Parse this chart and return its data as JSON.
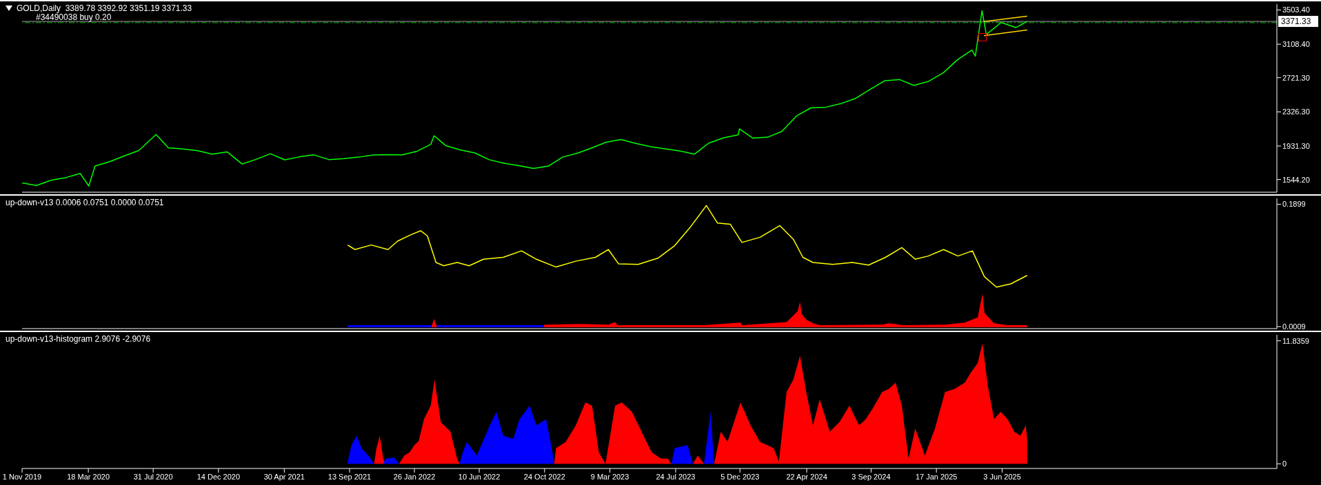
{
  "chart_data": [
    {
      "type": "line",
      "title": "GOLD,Daily  3389.78 3392.92 3351.19 3371.33",
      "xlim": [
        "2019-11-01",
        "2026-12-27"
      ],
      "ylim": [
        1398,
        3571
      ],
      "yticks": [
        {
          "value": 1544.2,
          "label": "1544.20"
        },
        {
          "value": 1931.3,
          "label": "1931.30"
        },
        {
          "value": 2326.3,
          "label": "2326.30"
        },
        {
          "value": 2721.3,
          "label": "2721.30"
        },
        {
          "value": 3108.4,
          "label": "3108.40"
        },
        {
          "value": 3503.4,
          "label": "3503.40"
        }
      ],
      "tick_labels": "y",
      "ref_lines": [
        {
          "axis": "y",
          "value": 3371.33,
          "label": "3371.33",
          "color": "#a0a0a8",
          "line_style": "solid"
        },
        {
          "axis": "y",
          "value": 3357,
          "label": "#34490038 buy 0.20",
          "color": "#00c000",
          "line_style": "dashed"
        }
      ],
      "series": [
        {
          "color": "#00ff00",
          "x": [
            "2019-11-01",
            "2019-12-01",
            "2020-01-01",
            "2020-02-01",
            "2020-03-01",
            "2020-03-19",
            "2020-04-01",
            "2020-05-01",
            "2020-06-01",
            "2020-07-01",
            "2020-08-06",
            "2020-09-01",
            "2020-10-01",
            "2020-11-01",
            "2020-12-01",
            "2021-01-01",
            "2021-02-01",
            "2021-03-01",
            "2021-04-01",
            "2021-05-01",
            "2021-06-01",
            "2021-07-01",
            "2021-08-01",
            "2021-09-01",
            "2021-10-01",
            "2021-11-01",
            "2021-12-01",
            "2022-01-01",
            "2022-02-01",
            "2022-03-01",
            "2022-03-08",
            "2022-04-01",
            "2022-05-01",
            "2022-06-01",
            "2022-07-01",
            "2022-08-01",
            "2022-09-01",
            "2022-10-01",
            "2022-11-01",
            "2022-12-01",
            "2023-01-01",
            "2023-02-01",
            "2023-03-01",
            "2023-04-01",
            "2023-05-01",
            "2023-06-01",
            "2023-07-01",
            "2023-08-01",
            "2023-09-01",
            "2023-10-01",
            "2023-11-01",
            "2023-12-01",
            "2023-12-04",
            "2024-01-01",
            "2024-02-01",
            "2024-03-01",
            "2024-04-01",
            "2024-05-01",
            "2024-06-01",
            "2024-07-01",
            "2024-08-01",
            "2024-09-01",
            "2024-10-01",
            "2024-11-01",
            "2024-12-01",
            "2025-01-01",
            "2025-02-01",
            "2025-03-01",
            "2025-04-01",
            "2025-04-08",
            "2025-04-22",
            "2025-05-01",
            "2025-06-01",
            "2025-07-01",
            "2025-07-25"
          ],
          "values": [
            1505,
            1476,
            1537,
            1568,
            1615,
            1470,
            1700,
            1750,
            1818,
            1880,
            2065,
            1910,
            1898,
            1877,
            1837,
            1864,
            1725,
            1775,
            1843,
            1772,
            1807,
            1829,
            1775,
            1787,
            1803,
            1828,
            1832,
            1830,
            1872,
            1950,
            2050,
            1938,
            1888,
            1852,
            1773,
            1732,
            1705,
            1672,
            1700,
            1805,
            1850,
            1914,
            1975,
            2007,
            1963,
            1925,
            1900,
            1875,
            1837,
            1965,
            2027,
            2060,
            2130,
            2022,
            2034,
            2100,
            2280,
            2373,
            2380,
            2420,
            2480,
            2587,
            2685,
            2700,
            2632,
            2680,
            2780,
            2925,
            3040,
            2970,
            3495,
            3220,
            3360,
            3300,
            3371
          ]
        },
        {
          "color": "#ffd700",
          "x": [
            "2025-04-26",
            "2025-07-25"
          ],
          "values": [
            3370,
            3432
          ]
        },
        {
          "color": "#ffd700",
          "x": [
            "2025-04-26",
            "2025-07-25"
          ],
          "values": [
            3207,
            3273
          ]
        }
      ]
    },
    {
      "type": "line",
      "title": "up-down-v13 0.0006 0.0751 0.0000 0.0751",
      "xlim": [
        "2019-11-01",
        "2026-12-27"
      ],
      "ylim": [
        -0.0022,
        0.199
      ],
      "yticks": [
        0.0009,
        0.1899
      ],
      "tick_labels": "y",
      "series": [
        {
          "color": "#ffff00",
          "x": [
            "2021-09-09",
            "2021-09-24",
            "2021-10-28",
            "2021-12-02",
            "2021-12-22",
            "2022-01-19",
            "2022-02-08",
            "2022-02-22",
            "2022-03-12",
            "2022-03-28",
            "2022-04-25",
            "2022-05-20",
            "2022-06-19",
            "2022-07-30",
            "2022-09-06",
            "2022-10-07",
            "2022-11-17",
            "2022-12-28",
            "2023-02-07",
            "2023-03-06",
            "2023-03-27",
            "2023-05-07",
            "2023-06-18",
            "2023-07-22",
            "2023-08-25",
            "2023-09-26",
            "2023-10-19",
            "2023-11-15",
            "2023-12-09",
            "2024-01-16",
            "2024-02-26",
            "2024-03-25",
            "2024-04-14",
            "2024-05-05",
            "2024-06-15",
            "2024-07-26",
            "2024-08-29",
            "2024-10-03",
            "2024-11-06",
            "2024-12-04",
            "2024-12-31",
            "2025-02-01",
            "2025-03-03",
            "2025-04-02",
            "2025-04-27",
            "2025-05-22",
            "2025-06-21",
            "2025-07-25"
          ],
          "values": [
            0.127,
            0.12,
            0.127,
            0.12,
            0.133,
            0.143,
            0.149,
            0.141,
            0.1,
            0.095,
            0.1,
            0.095,
            0.105,
            0.108,
            0.118,
            0.105,
            0.093,
            0.102,
            0.108,
            0.12,
            0.098,
            0.097,
            0.107,
            0.126,
            0.156,
            0.188,
            0.161,
            0.159,
            0.131,
            0.139,
            0.157,
            0.136,
            0.108,
            0.1,
            0.097,
            0.1,
            0.096,
            0.108,
            0.123,
            0.105,
            0.11,
            0.12,
            0.11,
            0.118,
            0.078,
            0.062,
            0.067,
            0.08
          ]
        },
        {
          "type": "area",
          "color": "#ff0000",
          "x": [
            "2022-03-01",
            "2022-03-04",
            "2022-03-08",
            "2022-03-12",
            "2022-03-16",
            "2022-06-01",
            "2022-10-20",
            "2022-10-24",
            "2023-01-10",
            "2023-03-06",
            "2023-03-20",
            "2023-03-24",
            "2023-09-21",
            "2023-12-06",
            "2023-12-10",
            "2024-03-11",
            "2024-03-25",
            "2024-04-03",
            "2024-04-08",
            "2024-04-12",
            "2024-04-21",
            "2024-05-05",
            "2024-05-19",
            "2024-09-26",
            "2024-10-10",
            "2024-10-24",
            "2024-11-06",
            "2025-02-04",
            "2025-03-17",
            "2025-04-02",
            "2025-04-13",
            "2025-04-23",
            "2025-04-27",
            "2025-05-17",
            "2025-06-14",
            "2025-07-25"
          ],
          "values": [
            0,
            0.004,
            0.013,
            0.004,
            0,
            null,
            0,
            0.004,
            0.005,
            0.004,
            0.008,
            0.003,
            0.003,
            0.007,
            0.003,
            0.008,
            0.018,
            0.025,
            0.039,
            0.02,
            0.012,
            0.006,
            0.003,
            0.004,
            0.006,
            0.005,
            0.003,
            0.004,
            0.007,
            0.012,
            0.015,
            0.052,
            0.022,
            0.006,
            0.003,
            0.003
          ]
        },
        {
          "type": "area",
          "color": "#0000ff",
          "x": [
            "2021-09-09",
            "2022-03-01",
            "2022-03-04",
            "2022-03-08",
            "2022-03-12",
            "2022-03-16",
            "2022-10-20",
            "2022-10-24"
          ],
          "values": [
            0.003,
            0.003,
            0,
            null,
            0,
            0.003,
            0.003,
            0
          ]
        }
      ]
    },
    {
      "type": "area",
      "title": "up-down-v13-histogram 2.9076 -2.9076",
      "xlim": [
        "2019-11-01",
        "2026-12-27"
      ],
      "xticks": [
        {
          "value": "2019-11-01",
          "label": "1 Nov 2019"
        },
        {
          "value": "2020-03-18",
          "label": "18 Mar 2020"
        },
        {
          "value": "2020-07-31",
          "label": "31 Jul 2020"
        },
        {
          "value": "2020-12-14",
          "label": "14 Dec 2020"
        },
        {
          "value": "2021-04-30",
          "label": "30 Apr 2021"
        },
        {
          "value": "2021-09-13",
          "label": "13 Sep 2021"
        },
        {
          "value": "2022-01-26",
          "label": "26 Jan 2022"
        },
        {
          "value": "2022-06-10",
          "label": "10 Jun 2022"
        },
        {
          "value": "2022-10-24",
          "label": "24 Oct 2022"
        },
        {
          "value": "2023-03-09",
          "label": "9 Mar 2023"
        },
        {
          "value": "2023-07-24",
          "label": "24 Jul 2023"
        },
        {
          "value": "2023-12-05",
          "label": "5 Dec 2023"
        },
        {
          "value": "2024-04-22",
          "label": "22 Apr 2024"
        },
        {
          "value": "2024-09-03",
          "label": "3 Sep 2024"
        },
        {
          "value": "2025-01-17",
          "label": "17 Jan 2025"
        },
        {
          "value": "2025-06-03",
          "label": "3 Jun 2025"
        }
      ],
      "ylim": [
        -0.45,
        12.41
      ],
      "yticks": [
        0,
        11.8359
      ],
      "series": [
        {
          "color": "#ff0000",
          "x": [
            "2021-11-03",
            "2021-11-08",
            "2021-11-15",
            "2021-11-22",
            "2021-11-27",
            "2021-12-10",
            "2021-12-25",
            "2022-01-05",
            "2022-01-16",
            "2022-01-26",
            "2022-02-04",
            "2022-02-15",
            "2022-03-01",
            "2022-03-09",
            "2022-03-22",
            "2022-04-11",
            "2022-04-25",
            "2022-04-30",
            "2022-08-01",
            "2022-11-13",
            "2022-11-17",
            "2022-12-07",
            "2022-12-28",
            "2023-01-17",
            "2023-01-31",
            "2023-02-14",
            "2023-02-28",
            "2023-03-20",
            "2023-04-03",
            "2023-04-24",
            "2023-05-14",
            "2023-06-04",
            "2023-06-24",
            "2023-07-08",
            "2023-07-15",
            "2023-08-05",
            "2023-08-29",
            "2023-09-08",
            "2023-09-21",
            "2023-09-25",
            "2023-10-12",
            "2023-10-19",
            "2023-10-26",
            "2023-11-09",
            "2023-12-06",
            "2023-12-27",
            "2024-01-16",
            "2024-02-13",
            "2024-02-24",
            "2024-03-11",
            "2024-03-25",
            "2024-04-08",
            "2024-04-21",
            "2024-05-05",
            "2024-05-19",
            "2024-06-09",
            "2024-06-29",
            "2024-07-20",
            "2024-08-09",
            "2024-08-23",
            "2024-09-06",
            "2024-09-26",
            "2024-10-10",
            "2024-10-24",
            "2024-11-06",
            "2024-11-20",
            "2024-12-04",
            "2024-12-24",
            "2025-01-14",
            "2025-02-04",
            "2025-02-24",
            "2025-03-17",
            "2025-03-30",
            "2025-04-13",
            "2025-04-23",
            "2025-05-04",
            "2025-05-17",
            "2025-05-31",
            "2025-06-14",
            "2025-06-28",
            "2025-07-11",
            "2025-07-22",
            "2025-07-25"
          ],
          "values": [
            0,
            1.5,
            2.7,
            0.5,
            0,
            null,
            0,
            0.8,
            1.1,
            1.8,
            2.2,
            4.3,
            5.6,
            8.1,
            4.0,
            3.1,
            0.5,
            0,
            null,
            0,
            1.5,
            2.1,
            3.7,
            5.9,
            5.6,
            1.1,
            0,
            5.6,
            5.9,
            5.0,
            3.1,
            1.1,
            0.5,
            0.5,
            0,
            null,
            0,
            0.8,
            0,
            null,
            0,
            1.5,
            3.1,
            2.1,
            5.9,
            3.7,
            2.1,
            1.5,
            0.2,
            6.9,
            8.1,
            10.4,
            6.9,
            3.7,
            6.2,
            3.1,
            4.0,
            5.6,
            3.7,
            4.3,
            5.3,
            6.9,
            7.2,
            7.8,
            5.6,
            0.5,
            3.4,
            0.8,
            3.4,
            6.9,
            7.2,
            7.8,
            8.8,
            9.7,
            11.6,
            7.5,
            4.3,
            5.0,
            4.3,
            3.1,
            2.7,
            3.7,
            2.4
          ]
        },
        {
          "color": "#0000ff",
          "x": [
            "2021-09-09",
            "2021-09-17",
            "2021-09-28",
            "2021-10-08",
            "2021-10-22",
            "2021-11-03",
            "2021-11-15",
            "2021-11-22",
            "2021-11-27",
            "2021-12-15",
            "2021-12-25",
            "2022-02-01",
            "2022-04-30",
            "2022-05-06",
            "2022-05-15",
            "2022-06-05",
            "2022-07-02",
            "2022-07-16",
            "2022-07-30",
            "2022-08-20",
            "2022-09-02",
            "2022-09-23",
            "2022-10-07",
            "2022-10-27",
            "2022-11-07",
            "2022-11-13",
            "2023-03-01",
            "2023-07-15",
            "2023-07-22",
            "2023-08-18",
            "2023-08-29",
            "2023-09-10",
            "2023-09-21",
            "2023-09-28",
            "2023-10-05",
            "2023-10-12"
          ],
          "values": [
            0.2,
            1.8,
            2.7,
            1.5,
            0.8,
            0,
            null,
            0,
            0.5,
            0.6,
            0,
            null,
            0,
            1.0,
            2.1,
            0.8,
            3.7,
            5.0,
            2.7,
            2.4,
            4.3,
            5.6,
            3.7,
            4.3,
            1.8,
            0,
            null,
            0,
            1.5,
            1.8,
            0,
            null,
            0,
            2.5,
            5.0,
            0
          ]
        }
      ]
    }
  ]
}
